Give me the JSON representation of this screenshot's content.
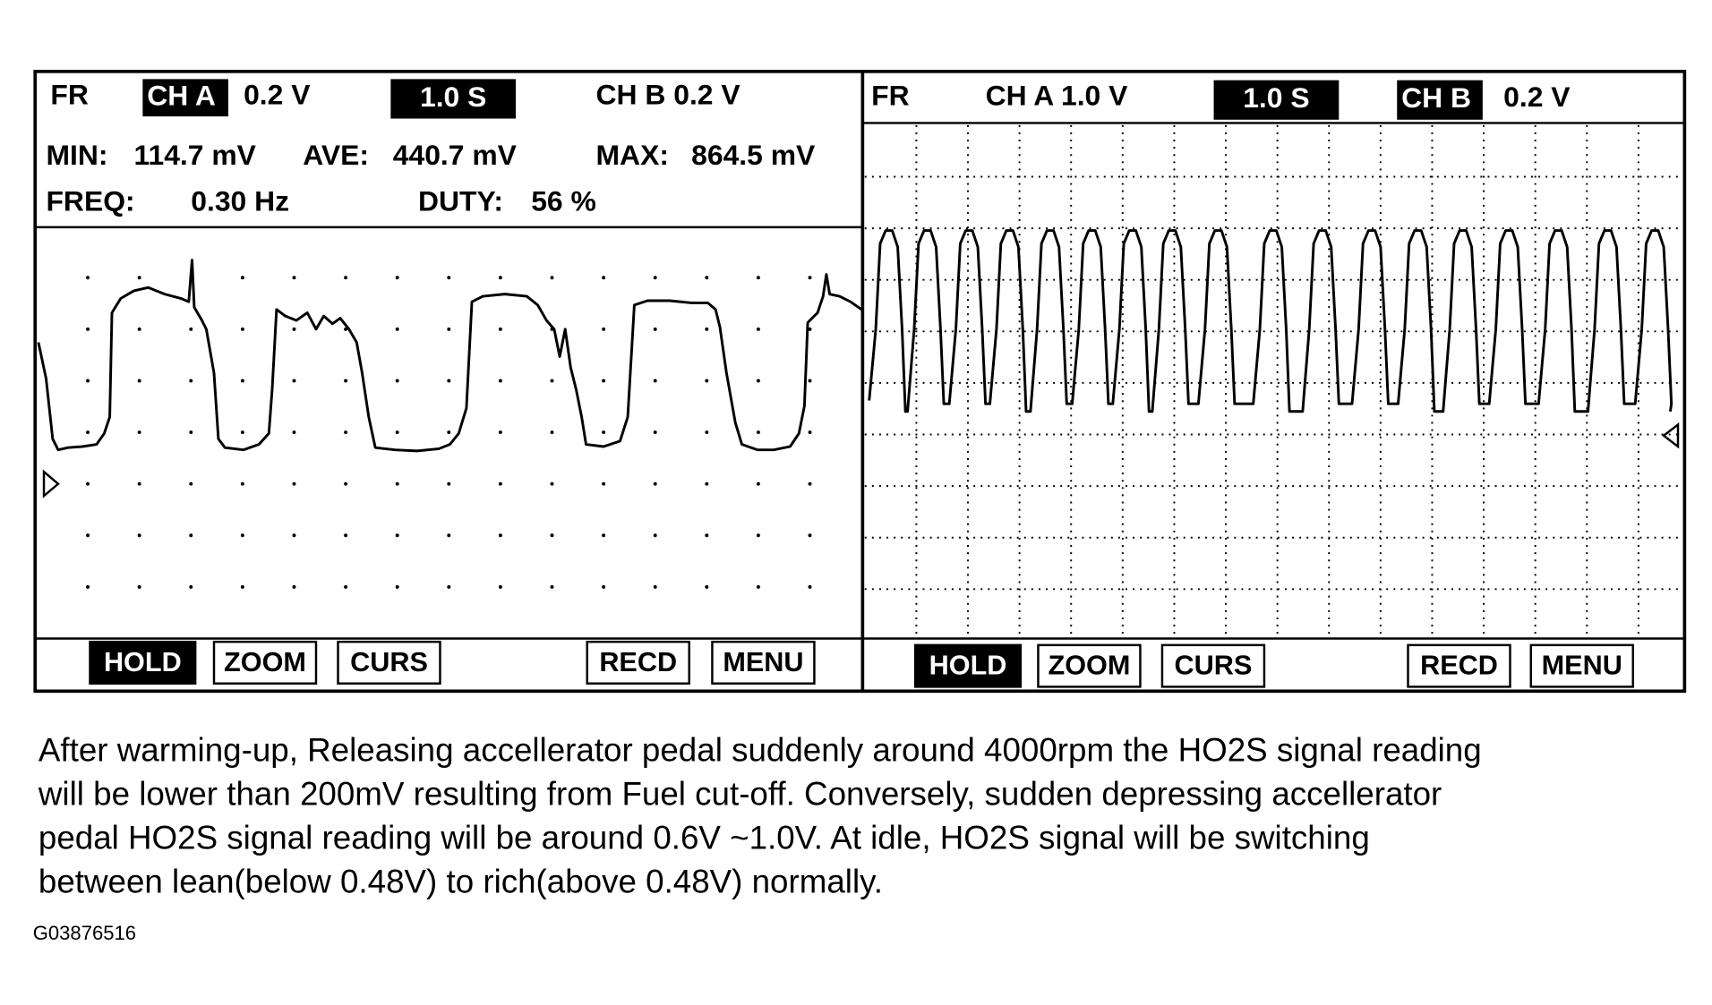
{
  "left_panel": {
    "header": {
      "fr": "FR",
      "ch_a": "CH A",
      "ch_a_scale": "0.2  V",
      "time": "1.0   S",
      "ch_b": "CH  B  0.2  V"
    },
    "stats": {
      "min_label": "MIN:",
      "min": "114.7  mV",
      "ave_label": "AVE:",
      "ave": "440.7 mV",
      "max_label": "MAX:",
      "max": "864.5 mV",
      "freq_label": "FREQ:",
      "freq": "0.30  Hz",
      "duty_label": "DUTY:",
      "duty": "56 %"
    },
    "buttons": [
      "HOLD",
      "ZOOM",
      "CURS",
      "RECD",
      "MENU"
    ]
  },
  "right_panel": {
    "header": {
      "fr": "FR",
      "ch_a": "CH  A  1.0  V",
      "time": "1.0   S",
      "ch_b": "CH  B",
      "ch_b_scale": "0.2  V"
    },
    "buttons": [
      "HOLD",
      "ZOOM",
      "CURS",
      "RECD",
      "MENU"
    ]
  },
  "caption": [
    "After warming-up, Releasing accellerator pedal suddenly around 4000rpm the HO2S signal reading",
    "will be lower than 200mV resulting from Fuel cut-off.   Conversely, sudden depressing accellerator",
    "pedal HO2S signal reading will be around 0.6V ~1.0V.  At idle, HO2S signal will be switching",
    "between lean(below 0.48V) to rich(above 0.48V) normally."
  ],
  "figure_code": "G03876516"
}
